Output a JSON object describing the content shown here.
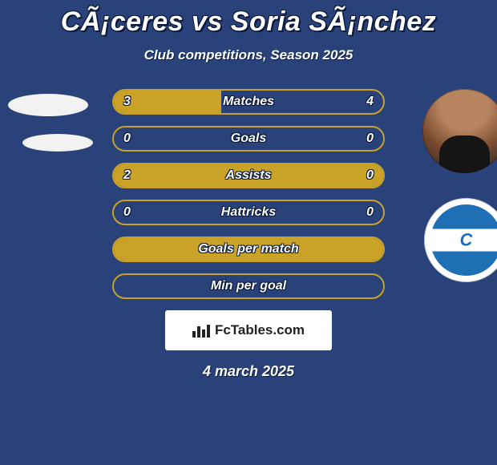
{
  "background_color": "#29427a",
  "accent_color": "#c9a227",
  "text_color": "#ffffff",
  "title": "CÃ¡ceres vs Soria SÃ¡nchez",
  "subtitle": "Club competitions, Season 2025",
  "date": "4 march 2025",
  "logo_text": "FcTables.com",
  "rows": [
    {
      "label": "Matches",
      "left_val": "3",
      "right_val": "4",
      "left_pct": 40,
      "right_pct": 0
    },
    {
      "label": "Goals",
      "left_val": "0",
      "right_val": "0",
      "left_pct": 0,
      "right_pct": 0
    },
    {
      "label": "Assists",
      "left_val": "2",
      "right_val": "0",
      "left_pct": 100,
      "right_pct": 0
    },
    {
      "label": "Hattricks",
      "left_val": "0",
      "right_val": "0",
      "left_pct": 0,
      "right_pct": 0
    },
    {
      "label": "Goals per match",
      "left_val": "",
      "right_val": "",
      "left_pct": 100,
      "right_pct": 0
    },
    {
      "label": "Min per goal",
      "left_val": "",
      "right_val": "",
      "left_pct": 0,
      "right_pct": 0
    }
  ]
}
